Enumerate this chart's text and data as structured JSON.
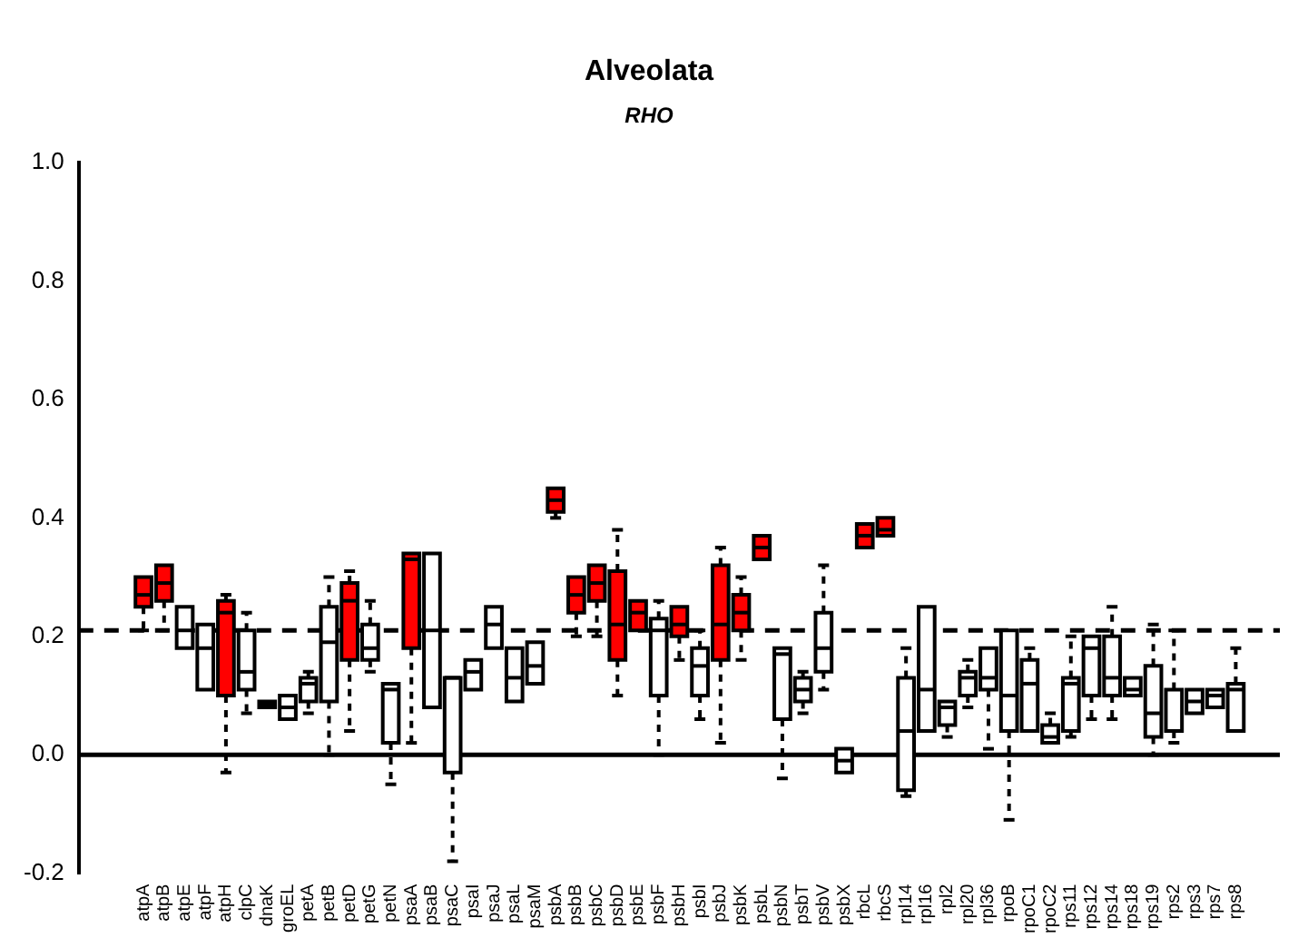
{
  "chart_data": {
    "type": "box",
    "title": "Alveolata",
    "subtitle": "RHO",
    "categories": [
      "atpA",
      "atpB",
      "atpE",
      "atpF",
      "atpH",
      "clpC",
      "dnaK",
      "groEL",
      "petA",
      "petB",
      "petD",
      "petG",
      "petN",
      "psaA",
      "psaB",
      "psaC",
      "psaI",
      "psaJ",
      "psaL",
      "psaM",
      "psbA",
      "psbB",
      "psbC",
      "psbD",
      "psbE",
      "psbF",
      "psbH",
      "psbI",
      "psbJ",
      "psbK",
      "psbL",
      "psbN",
      "psbT",
      "psbV",
      "psbX",
      "rbcL",
      "rbcS",
      "rpl14",
      "rpl16",
      "rpl2",
      "rpl20",
      "rpl36",
      "rpoB",
      "rpoC1",
      "rpoC2",
      "rps11",
      "rps12",
      "rps14",
      "rps18",
      "rps19",
      "rps2",
      "rps3",
      "rps7",
      "rps8"
    ],
    "colors": [
      "#ff0000",
      "#ff0000",
      "#ffffff",
      "#ffffff",
      "#ff0000",
      "#ffffff",
      "#ffffff",
      "#ffffff",
      "#ffffff",
      "#ffffff",
      "#ff0000",
      "#ffffff",
      "#ffffff",
      "#ff0000",
      "#ffffff",
      "#ffffff",
      "#ffffff",
      "#ffffff",
      "#ffffff",
      "#ffffff",
      "#ff0000",
      "#ff0000",
      "#ff0000",
      "#ff0000",
      "#ff0000",
      "#ffffff",
      "#ff0000",
      "#ffffff",
      "#ff0000",
      "#ff0000",
      "#ff0000",
      "#ffffff",
      "#ffffff",
      "#ffffff",
      "#ffffff",
      "#ff0000",
      "#ff0000",
      "#ffffff",
      "#ffffff",
      "#ffffff",
      "#ffffff",
      "#ffffff",
      "#ffffff",
      "#ffffff",
      "#ffffff",
      "#ffffff",
      "#ffffff",
      "#ffffff",
      "#ffffff",
      "#ffffff",
      "#ffffff",
      "#ffffff",
      "#ffffff",
      "#ffffff"
    ],
    "boxes": [
      {
        "low": 0.21,
        "q1": 0.25,
        "median": 0.27,
        "q3": 0.3,
        "high": 0.3
      },
      {
        "low": 0.21,
        "q1": 0.26,
        "median": 0.29,
        "q3": 0.32,
        "high": 0.32
      },
      {
        "low": 0.18,
        "q1": 0.18,
        "median": 0.21,
        "q3": 0.25,
        "high": 0.25
      },
      {
        "low": 0.11,
        "q1": 0.11,
        "median": 0.18,
        "q3": 0.22,
        "high": 0.22
      },
      {
        "low": -0.03,
        "q1": 0.1,
        "median": 0.24,
        "q3": 0.26,
        "high": 0.27
      },
      {
        "low": 0.07,
        "q1": 0.11,
        "median": 0.14,
        "q3": 0.21,
        "high": 0.24
      },
      {
        "low": 0.08,
        "q1": 0.08,
        "median": 0.085,
        "q3": 0.09,
        "high": 0.09
      },
      {
        "low": 0.06,
        "q1": 0.06,
        "median": 0.08,
        "q3": 0.1,
        "high": 0.1
      },
      {
        "low": 0.07,
        "q1": 0.09,
        "median": 0.12,
        "q3": 0.13,
        "high": 0.14
      },
      {
        "low": 0.0,
        "q1": 0.09,
        "median": 0.19,
        "q3": 0.25,
        "high": 0.3
      },
      {
        "low": 0.04,
        "q1": 0.16,
        "median": 0.26,
        "q3": 0.29,
        "high": 0.31
      },
      {
        "low": 0.14,
        "q1": 0.16,
        "median": 0.18,
        "q3": 0.22,
        "high": 0.26
      },
      {
        "low": -0.05,
        "q1": 0.02,
        "median": 0.11,
        "q3": 0.12,
        "high": 0.12
      },
      {
        "low": 0.02,
        "q1": 0.18,
        "median": 0.33,
        "q3": 0.34,
        "high": 0.34
      },
      {
        "low": 0.08,
        "q1": 0.08,
        "median": 0.21,
        "q3": 0.34,
        "high": 0.34
      },
      {
        "low": -0.18,
        "q1": -0.03,
        "median": 0.13,
        "q3": 0.13,
        "high": 0.13
      },
      {
        "low": 0.11,
        "q1": 0.11,
        "median": 0.14,
        "q3": 0.16,
        "high": 0.16
      },
      {
        "low": 0.18,
        "q1": 0.18,
        "median": 0.22,
        "q3": 0.25,
        "high": 0.25
      },
      {
        "low": 0.09,
        "q1": 0.09,
        "median": 0.13,
        "q3": 0.18,
        "high": 0.18
      },
      {
        "low": 0.12,
        "q1": 0.12,
        "median": 0.15,
        "q3": 0.19,
        "high": 0.19
      },
      {
        "low": 0.4,
        "q1": 0.41,
        "median": 0.43,
        "q3": 0.45,
        "high": 0.45
      },
      {
        "low": 0.2,
        "q1": 0.24,
        "median": 0.27,
        "q3": 0.3,
        "high": 0.3
      },
      {
        "low": 0.2,
        "q1": 0.26,
        "median": 0.29,
        "q3": 0.32,
        "high": 0.32
      },
      {
        "low": 0.1,
        "q1": 0.16,
        "median": 0.22,
        "q3": 0.31,
        "high": 0.38
      },
      {
        "low": 0.21,
        "q1": 0.21,
        "median": 0.24,
        "q3": 0.26,
        "high": 0.26
      },
      {
        "low": 0.0,
        "q1": 0.1,
        "median": 0.21,
        "q3": 0.23,
        "high": 0.26
      },
      {
        "low": 0.16,
        "q1": 0.2,
        "median": 0.22,
        "q3": 0.25,
        "high": 0.25
      },
      {
        "low": 0.06,
        "q1": 0.1,
        "median": 0.15,
        "q3": 0.18,
        "high": 0.21
      },
      {
        "low": 0.02,
        "q1": 0.16,
        "median": 0.22,
        "q3": 0.32,
        "high": 0.35
      },
      {
        "low": 0.16,
        "q1": 0.21,
        "median": 0.24,
        "q3": 0.27,
        "high": 0.3
      },
      {
        "low": 0.33,
        "q1": 0.33,
        "median": 0.35,
        "q3": 0.37,
        "high": 0.37
      },
      {
        "low": -0.04,
        "q1": 0.06,
        "median": 0.17,
        "q3": 0.18,
        "high": 0.18
      },
      {
        "low": 0.07,
        "q1": 0.09,
        "median": 0.11,
        "q3": 0.13,
        "high": 0.14
      },
      {
        "low": 0.11,
        "q1": 0.14,
        "median": 0.18,
        "q3": 0.24,
        "high": 0.32
      },
      {
        "low": -0.03,
        "q1": -0.03,
        "median": -0.01,
        "q3": 0.01,
        "high": 0.01
      },
      {
        "low": 0.35,
        "q1": 0.35,
        "median": 0.37,
        "q3": 0.39,
        "high": 0.39
      },
      {
        "low": 0.37,
        "q1": 0.37,
        "median": 0.38,
        "q3": 0.4,
        "high": 0.4
      },
      {
        "low": -0.07,
        "q1": -0.06,
        "median": 0.04,
        "q3": 0.13,
        "high": 0.18
      },
      {
        "low": 0.04,
        "q1": 0.04,
        "median": 0.11,
        "q3": 0.25,
        "high": 0.25
      },
      {
        "low": 0.03,
        "q1": 0.05,
        "median": 0.08,
        "q3": 0.09,
        "high": 0.09
      },
      {
        "low": 0.08,
        "q1": 0.1,
        "median": 0.13,
        "q3": 0.14,
        "high": 0.16
      },
      {
        "low": 0.01,
        "q1": 0.11,
        "median": 0.13,
        "q3": 0.18,
        "high": 0.18
      },
      {
        "low": -0.11,
        "q1": 0.04,
        "median": 0.1,
        "q3": 0.21,
        "high": 0.21
      },
      {
        "low": 0.04,
        "q1": 0.04,
        "median": 0.12,
        "q3": 0.16,
        "high": 0.18
      },
      {
        "low": 0.02,
        "q1": 0.02,
        "median": 0.03,
        "q3": 0.05,
        "high": 0.07
      },
      {
        "low": 0.03,
        "q1": 0.04,
        "median": 0.12,
        "q3": 0.13,
        "high": 0.2
      },
      {
        "low": 0.06,
        "q1": 0.1,
        "median": 0.18,
        "q3": 0.2,
        "high": 0.2
      },
      {
        "low": 0.06,
        "q1": 0.1,
        "median": 0.13,
        "q3": 0.2,
        "high": 0.25
      },
      {
        "low": 0.1,
        "q1": 0.1,
        "median": 0.11,
        "q3": 0.13,
        "high": 0.13
      },
      {
        "low": 0.0,
        "q1": 0.03,
        "median": 0.07,
        "q3": 0.15,
        "high": 0.22
      },
      {
        "low": 0.02,
        "q1": 0.04,
        "median": 0.04,
        "q3": 0.11,
        "high": 0.21
      },
      {
        "low": 0.07,
        "q1": 0.07,
        "median": 0.09,
        "q3": 0.11,
        "high": 0.11
      },
      {
        "low": 0.08,
        "q1": 0.08,
        "median": 0.1,
        "q3": 0.11,
        "high": 0.11
      },
      {
        "low": 0.04,
        "q1": 0.04,
        "median": 0.11,
        "q3": 0.12,
        "high": 0.18
      }
    ],
    "ylim": [
      -0.2,
      1.0
    ],
    "yticks": [
      -0.2,
      {
        "value": 0,
        "label": "0.0"
      },
      0.2,
      0.4,
      0.6,
      0.8,
      {
        "value": 1,
        "label": "1.0"
      }
    ],
    "ref_lines": [
      {
        "axis": "y",
        "value": 0,
        "color": "#000000",
        "line_style": "solid"
      },
      {
        "axis": "y",
        "value": 0.21,
        "color": "#000000",
        "line_style": "dashed"
      }
    ],
    "grid": false,
    "legend": false
  }
}
